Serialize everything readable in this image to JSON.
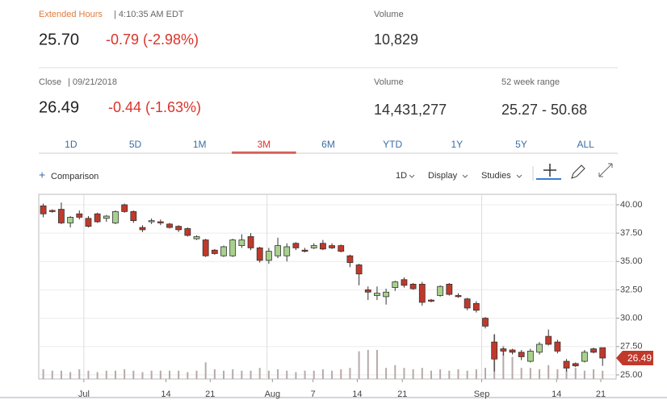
{
  "header": {
    "extended_label": "Extended Hours",
    "extended_time": "| 4:10:35 AM EDT",
    "ext_price": "25.70",
    "ext_change": "-0.79 (-2.98%)",
    "ext_volume_label": "Volume",
    "ext_volume": "10,829",
    "close_label": "Close",
    "close_date": "| 09/21/2018",
    "close_price": "26.49",
    "close_change": "-0.44 (-1.63%)",
    "volume_label": "Volume",
    "volume": "14,431,277",
    "range_label": "52 week range",
    "range": "25.27 - 50.68"
  },
  "tabs": {
    "items": [
      "1D",
      "5D",
      "1M",
      "3M",
      "6M",
      "YTD",
      "1Y",
      "5Y",
      "ALL"
    ],
    "active": 3
  },
  "toolbar": {
    "comparison": "Comparison",
    "interval": "1D",
    "display": "Display",
    "studies": "Studies"
  },
  "chart_data": {
    "type": "candlestick",
    "up_color": "#a9d18e",
    "down_color": "#c0392b",
    "volume_color": "#b8a9a9",
    "grid": true,
    "ylim": [
      24.64,
      40.92
    ],
    "yticks": [
      {
        "value": 25,
        "label": "25.00"
      },
      {
        "value": 27.5,
        "label": "27.50"
      },
      {
        "value": 30,
        "label": "30.00"
      },
      {
        "value": 32.5,
        "label": "32.50"
      },
      {
        "value": 35,
        "label": "35.00"
      },
      {
        "value": 37.5,
        "label": "37.50"
      },
      {
        "value": 40,
        "label": "40.00"
      }
    ],
    "xlim": [
      -0.5,
      63.5
    ],
    "xticks": [
      {
        "value": 4.5,
        "label": "Jul"
      },
      {
        "value": 13.6,
        "label": "14"
      },
      {
        "value": 18.5,
        "label": "21"
      },
      {
        "value": 25.4,
        "label": "Aug"
      },
      {
        "value": 29.9,
        "label": "7"
      },
      {
        "value": 34.8,
        "label": "14"
      },
      {
        "value": 39.8,
        "label": "21"
      },
      {
        "value": 48.6,
        "label": "Sep"
      },
      {
        "value": 56.9,
        "label": "14"
      },
      {
        "value": 61.8,
        "label": "21"
      }
    ],
    "vgrid": [
      4.5,
      24.8,
      48.6
    ],
    "open": [
      39.9,
      39.5,
      39.6,
      38.4,
      39.2,
      38.8,
      39.2,
      38.8,
      38.4,
      40.0,
      39.4,
      38.0,
      38.5,
      38.5,
      38.3,
      38.1,
      37.9,
      37.0,
      36.9,
      36.0,
      35.5,
      35.5,
      36.4,
      37.2,
      36.2,
      35.1,
      35.5,
      35.5,
      36.6,
      36.0,
      36.2,
      36.6,
      36.4,
      36.4,
      35.5,
      34.7,
      32.5,
      32.0,
      31.9,
      32.7,
      33.4,
      33.0,
      33.0,
      31.6,
      32.0,
      33.0,
      32.0,
      31.7,
      31.3,
      30.0,
      27.9,
      27.3,
      27.2,
      27.0,
      26.2,
      27.0,
      28.4,
      27.9,
      26.2,
      26.0,
      26.2,
      27.3,
      27.4
    ],
    "high": [
      40.1,
      39.6,
      40.2,
      39.0,
      39.5,
      39.0,
      39.3,
      39.1,
      39.5,
      40.1,
      39.5,
      38.2,
      38.8,
      38.7,
      38.4,
      38.2,
      38.0,
      37.3,
      37.0,
      36.1,
      36.4,
      37.0,
      37.4,
      37.5,
      36.3,
      36.2,
      37.1,
      36.6,
      36.7,
      36.2,
      36.6,
      36.9,
      36.6,
      36.5,
      35.6,
      34.8,
      32.8,
      32.8,
      32.6,
      33.3,
      33.6,
      33.1,
      33.2,
      31.7,
      32.9,
      33.1,
      32.2,
      31.8,
      31.5,
      30.1,
      28.6,
      27.4,
      27.3,
      27.2,
      27.3,
      27.9,
      29.0,
      28.1,
      26.4,
      26.1,
      27.2,
      27.4,
      27.4
    ],
    "low": [
      38.9,
      39.3,
      38.3,
      38.0,
      38.7,
      38.0,
      38.4,
      38.5,
      38.3,
      39.3,
      38.4,
      37.6,
      38.3,
      38.2,
      37.9,
      37.6,
      37.2,
      36.9,
      35.4,
      35.6,
      35.4,
      35.4,
      36.2,
      36.0,
      34.9,
      34.8,
      35.3,
      35.0,
      36.0,
      35.8,
      36.1,
      36.0,
      36.1,
      35.8,
      34.5,
      32.9,
      31.6,
      31.6,
      31.2,
      32.4,
      32.7,
      32.5,
      31.1,
      31.4,
      31.9,
      32.0,
      31.8,
      30.7,
      30.5,
      29.1,
      25.3,
      26.7,
      26.8,
      26.3,
      26.1,
      26.8,
      27.6,
      26.9,
      25.3,
      25.7,
      26.1,
      26.9,
      25.8
    ],
    "close": [
      39.2,
      39.4,
      38.4,
      38.9,
      38.9,
      38.1,
      38.5,
      39.0,
      39.4,
      39.4,
      38.6,
      37.8,
      38.6,
      38.4,
      38.0,
      37.8,
      37.3,
      37.2,
      35.5,
      35.7,
      36.3,
      36.9,
      36.9,
      36.2,
      35.1,
      35.9,
      36.4,
      36.3,
      36.2,
      35.9,
      36.4,
      36.1,
      36.2,
      35.9,
      34.9,
      33.9,
      32.3,
      32.2,
      32.3,
      33.2,
      32.9,
      32.6,
      31.4,
      31.5,
      32.8,
      32.1,
      31.9,
      30.9,
      30.7,
      29.3,
      26.4,
      27.1,
      27.0,
      26.6,
      27.1,
      27.7,
      27.7,
      27.1,
      25.6,
      25.8,
      27.0,
      27.0,
      26.49
    ],
    "volume": [
      3.5,
      3,
      3,
      2.5,
      3.5,
      3,
      2.5,
      3,
      3,
      3.5,
      3,
      2.5,
      3,
      3,
      3,
      3,
      2.5,
      3,
      6,
      3.5,
      3,
      3.5,
      3,
      3,
      4,
      3,
      3.5,
      3,
      2.5,
      3,
      3,
      3.5,
      3,
      3.5,
      4,
      10,
      10.5,
      10.5,
      4,
      5,
      4,
      3.5,
      4,
      3,
      3.5,
      3,
      3.5,
      3,
      3.5,
      4,
      16,
      12,
      8,
      4,
      4,
      3.5,
      5,
      3.5,
      3.5,
      4,
      3,
      3.5,
      3
    ]
  }
}
